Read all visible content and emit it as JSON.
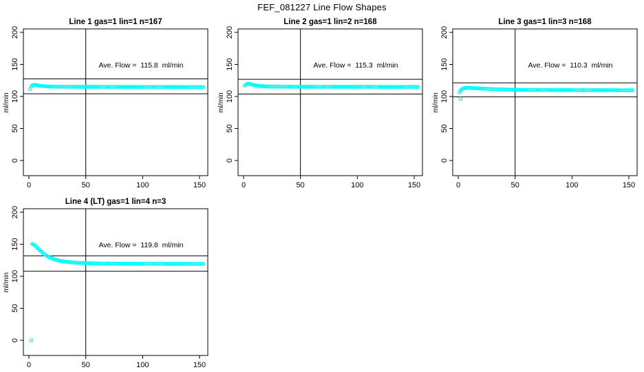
{
  "figure": {
    "title": "FEF_081227  Line Flow Shapes"
  },
  "colors": {
    "data_points": "#00FFFF",
    "axis": "#000000",
    "background": "#FFFFFF"
  },
  "chart_data": [
    {
      "type": "scatter",
      "title": "Line 1 gas=1 lin=1 n=167",
      "line": "1",
      "gas": 1,
      "lin": 1,
      "n": 167,
      "annotation": "Ave. Flow =  115.8  ml/min",
      "ave_flow_ml_min": 115.8,
      "xlabel": "",
      "ylabel": "ml/min",
      "xticks": [
        0,
        50,
        100,
        150
      ],
      "yticks": [
        0,
        50,
        100,
        150,
        200
      ],
      "xlim": [
        -6,
        157
      ],
      "ylim": [
        -24,
        205
      ],
      "grid": false,
      "legend": null,
      "marker": "open-circle",
      "color": "#00FFFF",
      "vline_x": 50,
      "ref_lines_y": [
        127.4,
        104.2
      ],
      "points": [
        [
          1,
          111.5
        ],
        [
          2,
          115.8
        ],
        [
          3,
          117.2
        ],
        [
          4,
          117.9
        ],
        [
          5,
          118.1
        ],
        [
          6,
          118
        ],
        [
          7,
          117.7
        ],
        [
          8,
          117.3
        ],
        [
          9,
          117
        ],
        [
          10,
          116.7
        ],
        [
          12,
          116.2
        ],
        [
          14,
          115.9
        ],
        [
          17,
          115.6
        ],
        [
          20,
          115.4
        ],
        [
          25,
          115.2
        ],
        [
          30,
          115.1
        ],
        [
          40,
          115.1
        ],
        [
          50,
          115
        ],
        [
          60,
          115
        ],
        [
          70,
          114.9
        ],
        [
          80,
          114.9
        ],
        [
          90,
          114.9
        ],
        [
          100,
          114.8
        ],
        [
          110,
          114.8
        ],
        [
          120,
          114.8
        ],
        [
          130,
          114.8
        ],
        [
          140,
          114.7
        ],
        [
          147,
          114.7
        ],
        [
          153,
          114.7
        ]
      ],
      "outlier_points": []
    },
    {
      "type": "scatter",
      "title": "Line 2 gas=1 lin=2 n=168",
      "line": "2",
      "gas": 1,
      "lin": 2,
      "n": 168,
      "annotation": "Ave. Flow =  115.3  ml/min",
      "ave_flow_ml_min": 115.3,
      "xlabel": "",
      "ylabel": "ml/min",
      "xticks": [
        0,
        50,
        100,
        150
      ],
      "yticks": [
        0,
        50,
        100,
        150,
        200
      ],
      "xlim": [
        -6,
        157
      ],
      "ylim": [
        -24,
        205
      ],
      "grid": false,
      "legend": null,
      "marker": "open-circle",
      "color": "#00FFFF",
      "vline_x": 50,
      "ref_lines_y": [
        126.8,
        103.8
      ],
      "points": [
        [
          1,
          117
        ],
        [
          2,
          118.6
        ],
        [
          3,
          119.4
        ],
        [
          4,
          119.7
        ],
        [
          5,
          119.5
        ],
        [
          6,
          119.1
        ],
        [
          7,
          118.6
        ],
        [
          8,
          118.2
        ],
        [
          10,
          117.5
        ],
        [
          12,
          116.9
        ],
        [
          14,
          116.5
        ],
        [
          17,
          116
        ],
        [
          20,
          115.7
        ],
        [
          25,
          115.4
        ],
        [
          30,
          115.3
        ],
        [
          40,
          115.2
        ],
        [
          50,
          115.2
        ],
        [
          60,
          115.1
        ],
        [
          70,
          115.1
        ],
        [
          80,
          115
        ],
        [
          90,
          115
        ],
        [
          100,
          115
        ],
        [
          110,
          115
        ],
        [
          120,
          114.9
        ],
        [
          130,
          114.9
        ],
        [
          140,
          114.9
        ],
        [
          147,
          114.9
        ],
        [
          153,
          114.9
        ]
      ],
      "outlier_points": []
    },
    {
      "type": "scatter",
      "title": "Line 3 gas=1 lin=3 n=168",
      "line": "3",
      "gas": 1,
      "lin": 3,
      "n": 168,
      "annotation": "Ave. Flow =  110.3  ml/min",
      "ave_flow_ml_min": 110.3,
      "xlabel": "",
      "ylabel": "ml/min",
      "xticks": [
        0,
        50,
        100,
        150
      ],
      "yticks": [
        0,
        50,
        100,
        150,
        200
      ],
      "xlim": [
        -6,
        157
      ],
      "ylim": [
        -24,
        205
      ],
      "grid": false,
      "legend": null,
      "marker": "open-circle",
      "color": "#00FFFF",
      "vline_x": 50,
      "ref_lines_y": [
        121.3,
        99.3
      ],
      "points": [
        [
          1,
          106.5
        ],
        [
          2,
          109.2
        ],
        [
          3,
          111
        ],
        [
          4,
          112.2
        ],
        [
          5,
          112.9
        ],
        [
          6,
          113.3
        ],
        [
          8,
          113.5
        ],
        [
          10,
          113.4
        ],
        [
          12,
          113.2
        ],
        [
          14,
          113
        ],
        [
          17,
          112.7
        ],
        [
          20,
          112.4
        ],
        [
          25,
          111.9
        ],
        [
          30,
          111.5
        ],
        [
          35,
          111.2
        ],
        [
          40,
          110.9
        ],
        [
          50,
          110.5
        ],
        [
          60,
          110.2
        ],
        [
          70,
          110.1
        ],
        [
          80,
          110
        ],
        [
          90,
          109.9
        ],
        [
          100,
          109.9
        ],
        [
          110,
          109.8
        ],
        [
          120,
          109.8
        ],
        [
          130,
          109.8
        ],
        [
          140,
          109.7
        ],
        [
          147,
          109.7
        ],
        [
          153,
          109.7
        ]
      ],
      "outlier_points": [
        [
          2,
          96.5
        ]
      ]
    },
    {
      "type": "scatter",
      "title": "Line 4 (LT) gas=1 lin=4 n=3",
      "line": "4 (LT)",
      "gas": 1,
      "lin": 4,
      "n": 3,
      "annotation": "Ave. Flow =  119.8  ml/min",
      "ave_flow_ml_min": 119.8,
      "xlabel": "",
      "ylabel": "ml/min",
      "xticks": [
        0,
        50,
        100,
        150
      ],
      "yticks": [
        0,
        50,
        100,
        150,
        200
      ],
      "xlim": [
        -6,
        157
      ],
      "ylim": [
        -24,
        205
      ],
      "grid": false,
      "legend": null,
      "marker": "open-circle",
      "color": "#00FFFF",
      "vline_x": 50,
      "ref_lines_y": [
        131.8,
        107.8
      ],
      "points": [
        [
          3,
          150.5
        ],
        [
          4,
          149.6
        ],
        [
          5,
          148.3
        ],
        [
          6,
          146.7
        ],
        [
          7,
          145
        ],
        [
          8,
          143.2
        ],
        [
          9,
          141.5
        ],
        [
          10,
          139.8
        ],
        [
          11,
          138.2
        ],
        [
          12,
          136.7
        ],
        [
          13,
          135.2
        ],
        [
          14,
          133.9
        ],
        [
          15,
          132.7
        ],
        [
          16,
          131.5
        ],
        [
          17,
          130.5
        ],
        [
          18,
          129.5
        ],
        [
          19,
          128.7
        ],
        [
          20,
          127.9
        ],
        [
          22,
          126.6
        ],
        [
          24,
          125.5
        ],
        [
          26,
          124.6
        ],
        [
          28,
          123.9
        ],
        [
          30,
          123.3
        ],
        [
          33,
          122.6
        ],
        [
          36,
          122
        ],
        [
          40,
          121.4
        ],
        [
          45,
          120.9
        ],
        [
          50,
          120.5
        ],
        [
          55,
          120.2
        ],
        [
          60,
          120
        ],
        [
          70,
          119.8
        ],
        [
          80,
          119.7
        ],
        [
          90,
          119.6
        ],
        [
          100,
          119.5
        ],
        [
          110,
          119.5
        ],
        [
          120,
          119.4
        ],
        [
          130,
          119.4
        ],
        [
          140,
          119.4
        ],
        [
          147,
          119.3
        ],
        [
          153,
          119.3
        ]
      ],
      "outlier_points": [
        [
          2,
          0
        ]
      ]
    }
  ]
}
